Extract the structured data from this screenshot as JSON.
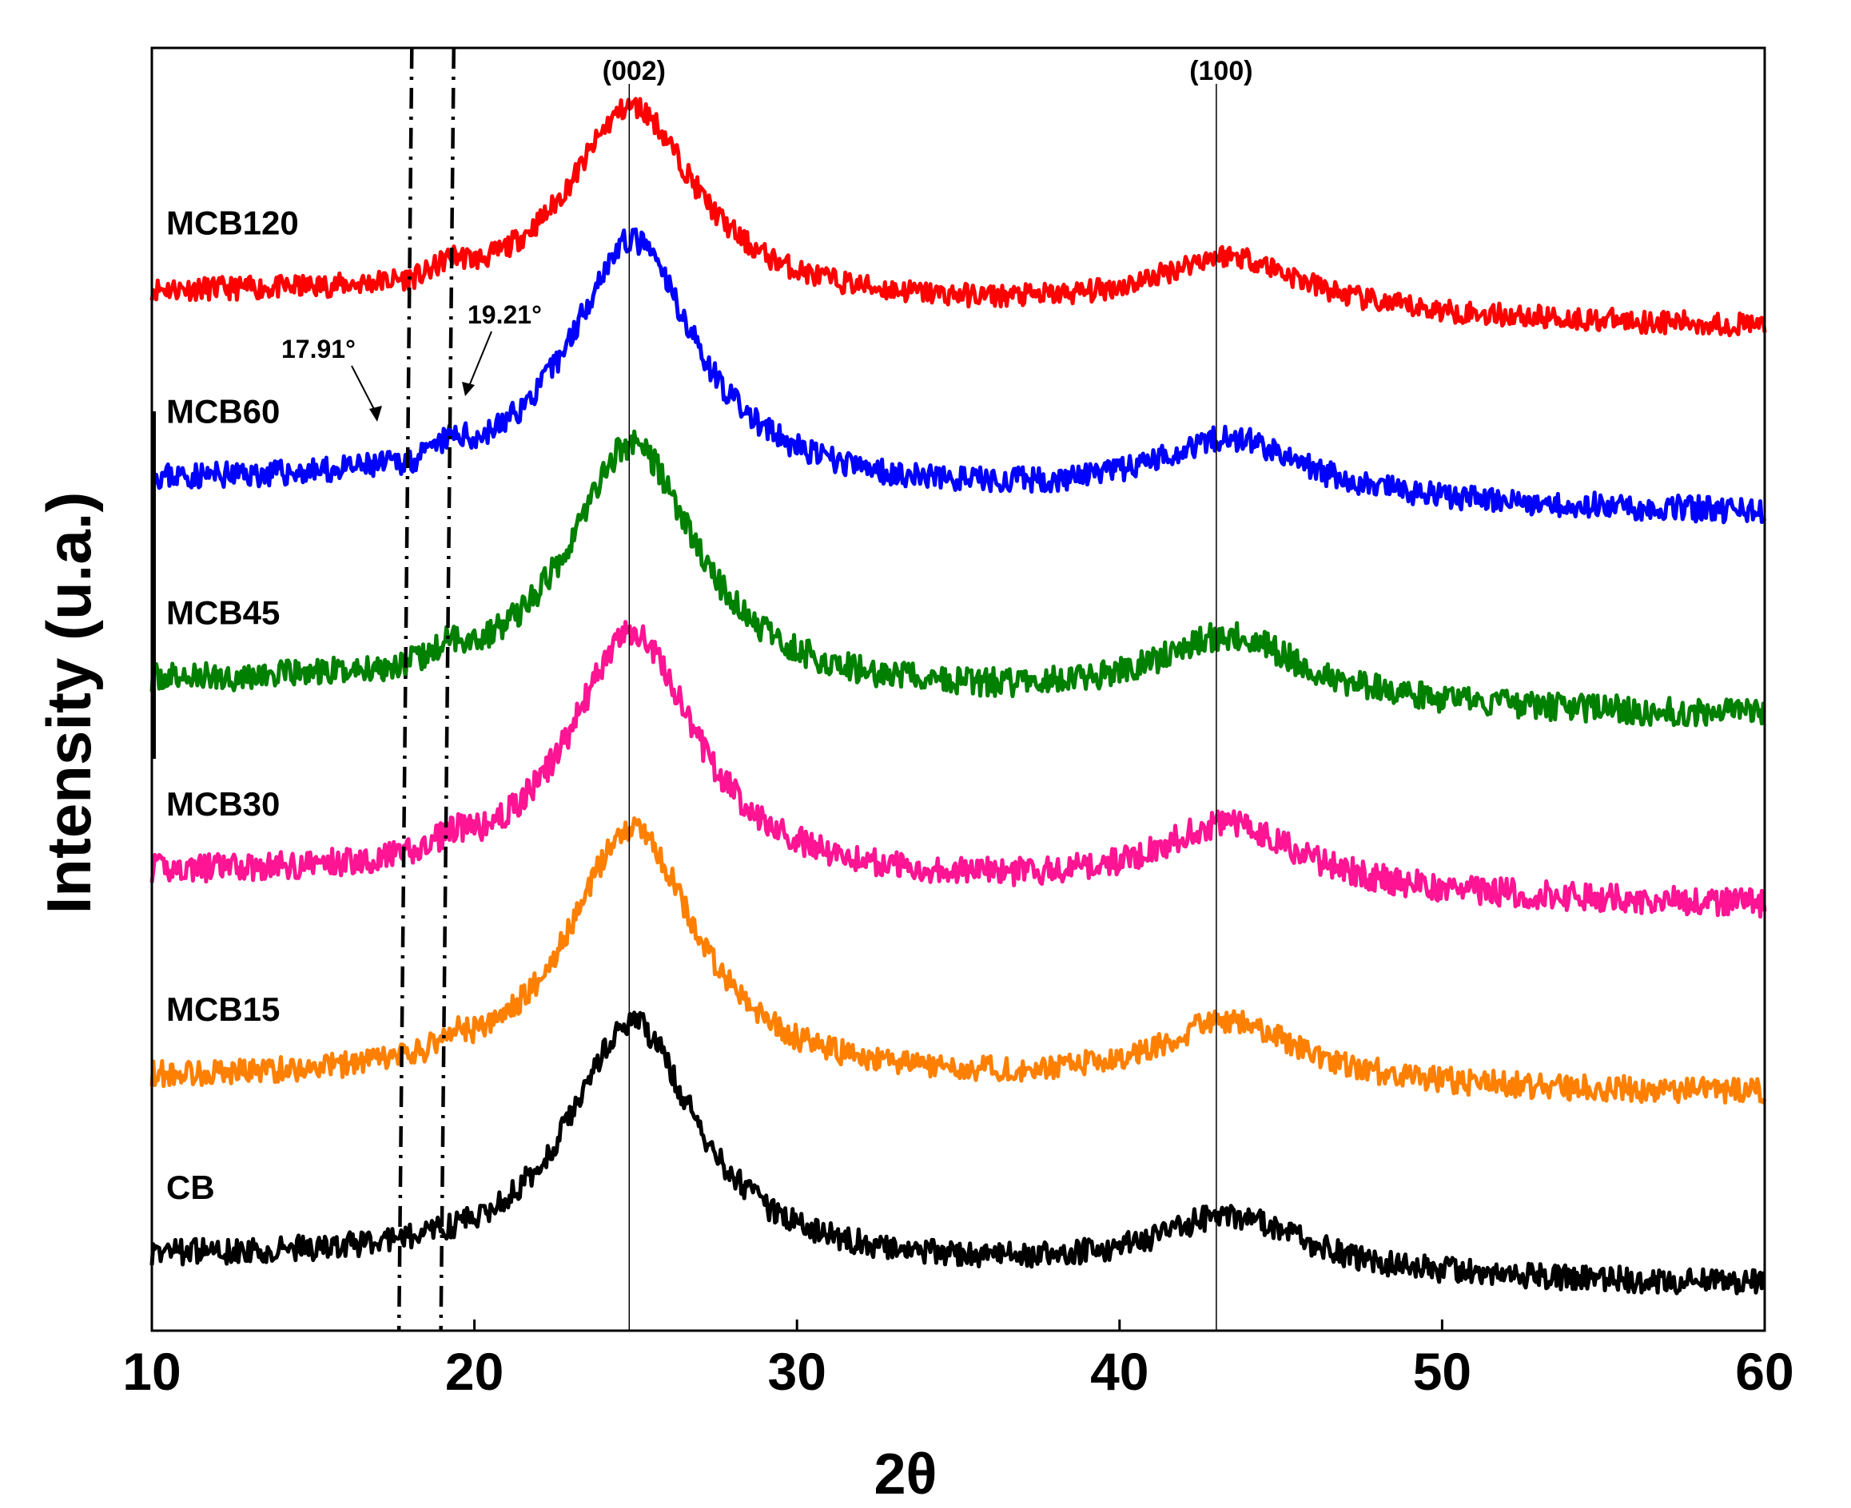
{
  "chart_data": {
    "type": "line",
    "title": "",
    "xlabel": "2θ",
    "ylabel": "Intensity (u.a.)",
    "xlim": [
      10,
      60
    ],
    "xticks": [
      10,
      20,
      30,
      40,
      50,
      60
    ],
    "xtick_labels": [
      "10",
      "20",
      "30",
      "40",
      "50",
      "60"
    ],
    "ylim": [
      0,
      1
    ],
    "grid": false,
    "peaks": [
      {
        "label": "(002)",
        "x": 24.8
      },
      {
        "label": "(100)",
        "x": 43.0
      }
    ],
    "reference_lines": [
      {
        "label": "17.91°",
        "x": 17.91,
        "style": "dash-dot"
      },
      {
        "label": "19.21°",
        "x": 19.21,
        "style": "dash-dot"
      }
    ],
    "series": [
      {
        "name": "MCB120",
        "color": "#ff0000",
        "baseline": 0.808,
        "end": 0.782,
        "peak1": 0.153,
        "peak2": 0.045,
        "noise": 0.009,
        "seed": 11
      },
      {
        "name": "MCB60",
        "color": "#0000ff",
        "baseline": 0.661,
        "end": 0.637,
        "peak1": 0.195,
        "peak2": 0.048,
        "noise": 0.01,
        "seed": 23
      },
      {
        "name": "MCB45",
        "color": "#008000",
        "baseline": 0.504,
        "end": 0.478,
        "peak1": 0.194,
        "peak2": 0.052,
        "noise": 0.011,
        "seed": 37
      },
      {
        "name": "MCB30",
        "color": "#ff1493",
        "baseline": 0.355,
        "end": 0.331,
        "peak1": 0.195,
        "peak2": 0.053,
        "noise": 0.011,
        "seed": 41
      },
      {
        "name": "MCB15",
        "color": "#ff8000",
        "baseline": 0.195,
        "end": 0.184,
        "peak1": 0.2,
        "peak2": 0.05,
        "noise": 0.01,
        "seed": 53
      },
      {
        "name": "CB",
        "color": "#000000",
        "baseline": 0.056,
        "end": 0.035,
        "peak1": 0.19,
        "peak2": 0.045,
        "noise": 0.01,
        "seed": 67
      }
    ]
  }
}
